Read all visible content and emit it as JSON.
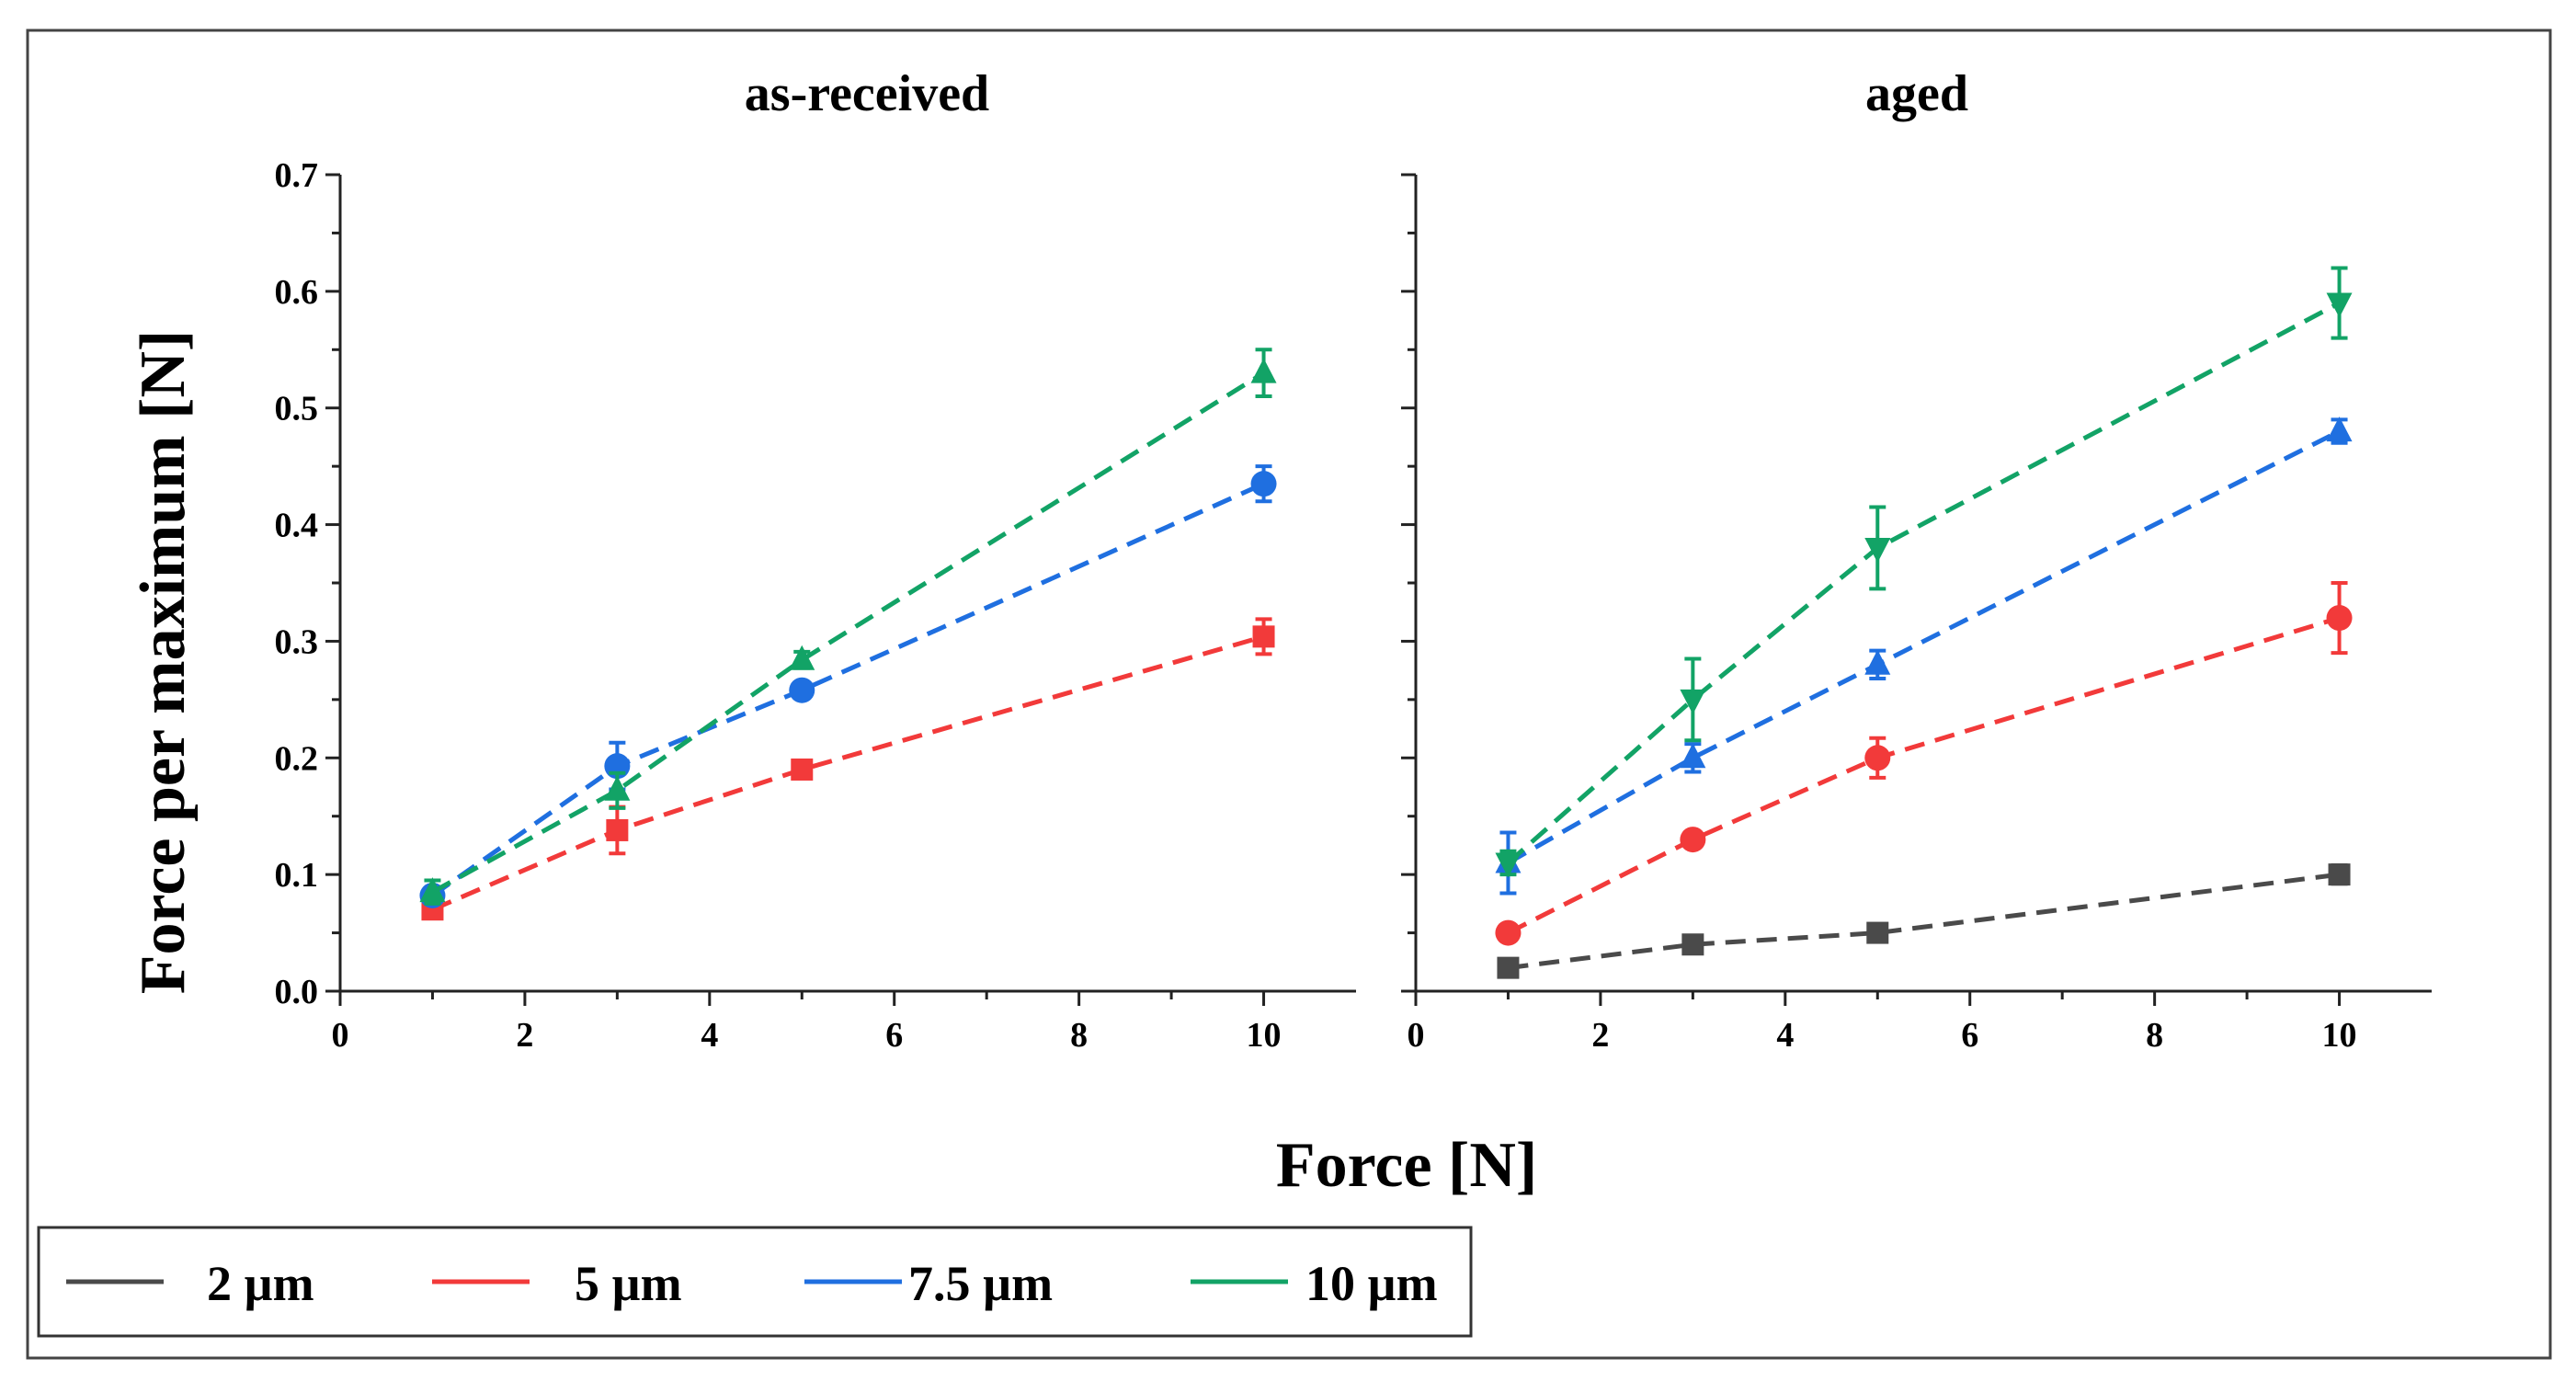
{
  "figure": {
    "ylabel": "Force per maximum [N]",
    "xlabel": "Force [N]"
  },
  "legend": {
    "entries": [
      {
        "label": "2 µm",
        "color": "#4a4a4a"
      },
      {
        "label": "5 µm",
        "color": "#f23a3a"
      },
      {
        "label": "7.5 µm",
        "color": "#1f6fe0"
      },
      {
        "label": "10 µm",
        "color": "#12a366"
      }
    ]
  },
  "colors": {
    "2um": "#4a4a4a",
    "5um": "#f23a3a",
    "7.5um": "#1f6fe0",
    "10um": "#12a366",
    "axis": "#222222"
  },
  "chart_data": [
    {
      "type": "scatter",
      "title": "as-received",
      "xlabel": "Force [N]",
      "ylabel": "Force per maximum [N]",
      "xlim": [
        0,
        11
      ],
      "ylim": [
        0,
        0.7
      ],
      "xticks": [
        "0",
        "2",
        "4",
        "6",
        "8",
        "10"
      ],
      "yticks": [
        "0.0",
        "0.1",
        "0.2",
        "0.3",
        "0.4",
        "0.5",
        "0.6",
        "0.7"
      ],
      "series": [
        {
          "name": "5 µm",
          "color": "#f23a3a",
          "marker": "square",
          "x": [
            1,
            3,
            5,
            10
          ],
          "values": [
            0.07,
            0.138,
            0.19,
            0.304
          ],
          "err": [
            0.005,
            0.02,
            0.006,
            0.015
          ]
        },
        {
          "name": "7.5 µm",
          "color": "#1f6fe0",
          "marker": "circle",
          "x": [
            1,
            3,
            5,
            10
          ],
          "values": [
            0.082,
            0.193,
            0.258,
            0.435
          ],
          "err": [
            0.006,
            0.02,
            0.005,
            0.015
          ]
        },
        {
          "name": "10 µm",
          "color": "#12a366",
          "marker": "triangle-up",
          "x": [
            1,
            3,
            5,
            10
          ],
          "values": [
            0.085,
            0.172,
            0.284,
            0.53
          ],
          "err": [
            0.01,
            0.015,
            0.007,
            0.02
          ]
        }
      ]
    },
    {
      "type": "scatter",
      "title": "aged",
      "xlabel": "Force [N]",
      "ylabel": "Force per maximum [N]",
      "xlim": [
        0,
        11
      ],
      "ylim": [
        0,
        0.7
      ],
      "xticks": [
        "0",
        "2",
        "4",
        "6",
        "8",
        "10"
      ],
      "yticks": [],
      "series": [
        {
          "name": "2 µm",
          "color": "#4a4a4a",
          "marker": "square",
          "x": [
            1,
            3,
            5,
            10
          ],
          "values": [
            0.02,
            0.04,
            0.05,
            0.1
          ],
          "err": [
            0.004,
            0.004,
            0.004,
            0.008
          ]
        },
        {
          "name": "5 µm",
          "color": "#f23a3a",
          "marker": "circle",
          "x": [
            1,
            3,
            5,
            10
          ],
          "values": [
            0.05,
            0.13,
            0.2,
            0.32
          ],
          "err": [
            0.004,
            0.005,
            0.017,
            0.03
          ]
        },
        {
          "name": "7.5 µm",
          "color": "#1f6fe0",
          "marker": "triangle-up",
          "x": [
            1,
            3,
            5,
            10
          ],
          "values": [
            0.11,
            0.2,
            0.28,
            0.48
          ],
          "err": [
            0.026,
            0.012,
            0.012,
            0.01
          ]
        },
        {
          "name": "10 µm",
          "color": "#12a366",
          "marker": "triangle-down",
          "x": [
            1,
            3,
            5,
            10
          ],
          "values": [
            0.11,
            0.25,
            0.38,
            0.59
          ],
          "err": [
            0.01,
            0.035,
            0.035,
            0.03
          ]
        }
      ]
    }
  ]
}
